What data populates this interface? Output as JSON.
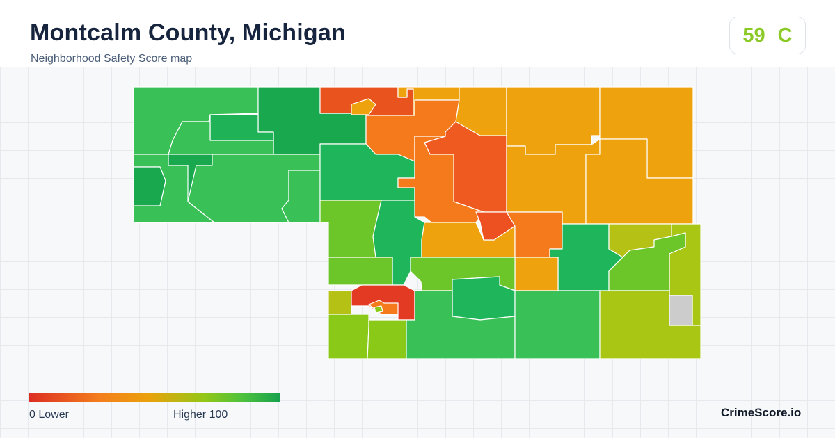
{
  "header": {
    "title": "Montcalm County, Michigan",
    "subtitle": "Neighborhood Safety Score map"
  },
  "score": {
    "value": "59",
    "grade": "C",
    "color": "#8ac926"
  },
  "legend": {
    "min_label": "0  Lower",
    "max_label": "Higher  100",
    "min_value": 0,
    "max_value": 100,
    "colors": [
      "#dd2e24",
      "#f47e1c",
      "#eaa20c",
      "#93c717",
      "#4ec23c",
      "#17a14d"
    ]
  },
  "brand": "CrimeScore.io",
  "map": {
    "region_border_color": "#ffffff",
    "regions": [
      {
        "color": "#39c157"
      },
      {
        "color": "#19a84e"
      },
      {
        "color": "#1fb257"
      },
      {
        "color": "#39c157"
      },
      {
        "color": "#39c157"
      },
      {
        "color": "#19a84e"
      },
      {
        "color": "#19a84e"
      },
      {
        "color": "#39c157"
      },
      {
        "color": "#39c157"
      },
      {
        "color": "#e9531e"
      },
      {
        "color": "#eea20d"
      },
      {
        "color": "#eea20d"
      },
      {
        "color": "#f47a1c"
      },
      {
        "color": "#1fb55a"
      },
      {
        "color": "#ee5a1f"
      },
      {
        "color": "#f47a1c"
      },
      {
        "color": "#eea20d"
      },
      {
        "color": "#eea20d"
      },
      {
        "color": "#eea20d"
      },
      {
        "color": "#eea20d"
      },
      {
        "color": "#eea20d"
      },
      {
        "color": "#6cc62a"
      },
      {
        "color": "#1fb55a"
      },
      {
        "color": "#eea20d"
      },
      {
        "color": "#ee5121"
      },
      {
        "color": "#f47a1c"
      },
      {
        "color": "#1fb55a"
      },
      {
        "color": "#b5c114"
      },
      {
        "color": "#a9c615"
      },
      {
        "color": "#eea20d"
      },
      {
        "color": "#6cc62a"
      },
      {
        "color": "#6cc62a"
      },
      {
        "color": "#6cc62a"
      },
      {
        "color": "#1fb55a"
      },
      {
        "color": "#b5c114"
      },
      {
        "color": "#e33a24"
      },
      {
        "color": "#f47a1c"
      },
      {
        "color": "#8ac917"
      },
      {
        "color": "#8ac917"
      },
      {
        "color": "#8ac917"
      },
      {
        "color": "#39c157"
      },
      {
        "color": "#39c157"
      },
      {
        "color": "#a9c615"
      }
    ]
  }
}
